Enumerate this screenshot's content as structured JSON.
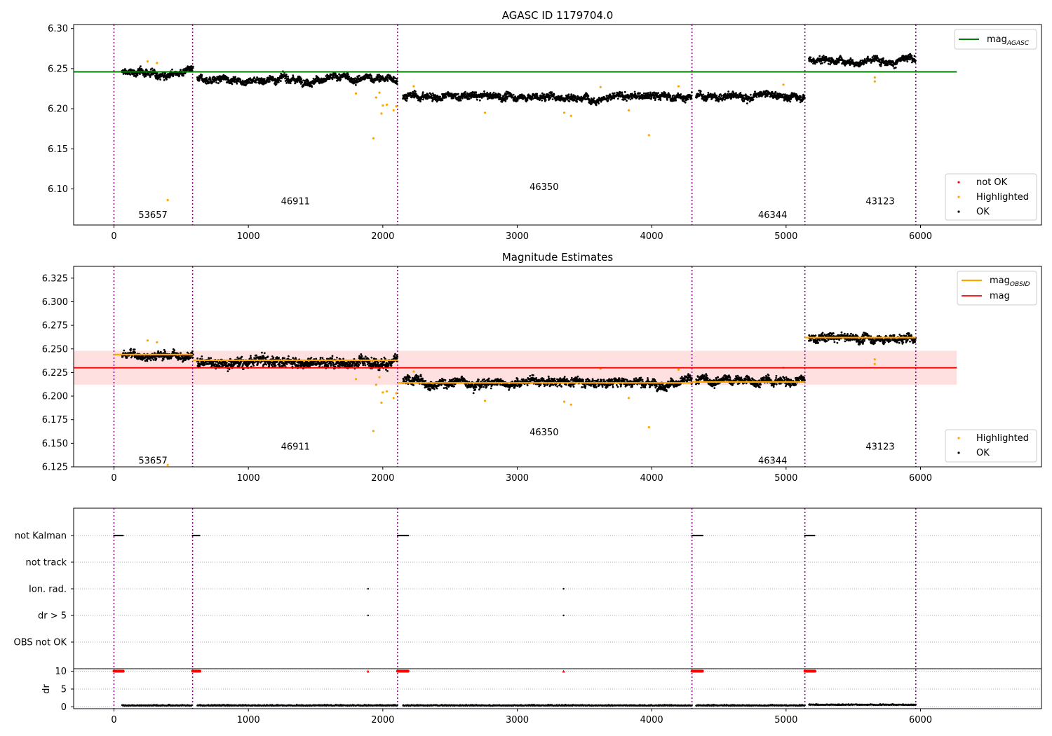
{
  "chart_data": [
    {
      "id": "agasc",
      "type": "scatter",
      "title": "AGASC ID 1179704.0",
      "xlim": [
        -300,
        6900
      ],
      "ylim": [
        6.055,
        6.305
      ],
      "xticks": [
        0,
        1000,
        2000,
        3000,
        4000,
        5000,
        6000
      ],
      "yticks": [
        6.1,
        6.15,
        6.2,
        6.25,
        6.3
      ],
      "ytick_labels": [
        "6.10",
        "6.15",
        "6.20",
        "6.25",
        "6.30"
      ],
      "vlines": [
        0,
        585,
        2110,
        4300,
        5140,
        5965
      ],
      "segments": [
        {
          "obsid": "53657",
          "x_start": 60,
          "x_end": 590,
          "mean": 6.245,
          "noise": 0.004,
          "label_x": 290,
          "label_y": 6.068
        },
        {
          "obsid": "46911",
          "x_start": 620,
          "x_end": 2110,
          "mean": 6.237,
          "noise": 0.004,
          "label_x": 1350,
          "label_y": 6.085
        },
        {
          "obsid": "46350",
          "x_start": 2150,
          "x_end": 4300,
          "mean": 6.215,
          "noise": 0.004,
          "label_x": 3200,
          "label_y": 6.103
        },
        {
          "obsid": "46344",
          "x_start": 4330,
          "x_end": 5140,
          "mean": 6.216,
          "noise": 0.004,
          "label_x": 4900,
          "label_y": 6.068
        },
        {
          "obsid": "43123",
          "x_start": 5170,
          "x_end": 5965,
          "mean": 6.261,
          "noise": 0.004,
          "label_x": 5700,
          "label_y": 6.085
        }
      ],
      "highlighted": [
        [
          250,
          6.259
        ],
        [
          320,
          6.257
        ],
        [
          400,
          6.086
        ],
        [
          1800,
          6.219
        ],
        [
          1930,
          6.163
        ],
        [
          1950,
          6.214
        ],
        [
          1975,
          6.22
        ],
        [
          1990,
          6.194
        ],
        [
          2000,
          6.204
        ],
        [
          2030,
          6.205
        ],
        [
          2080,
          6.198
        ],
        [
          2100,
          6.203
        ],
        [
          2230,
          6.228
        ],
        [
          2760,
          6.195
        ],
        [
          3350,
          6.195
        ],
        [
          3400,
          6.191
        ],
        [
          3620,
          6.227
        ],
        [
          3830,
          6.198
        ],
        [
          3980,
          6.167
        ],
        [
          4200,
          6.228
        ],
        [
          4980,
          6.23
        ],
        [
          5660,
          6.239
        ],
        [
          5660,
          6.234
        ]
      ],
      "hlines": [
        {
          "name": "mag_AGASC",
          "y": 6.246,
          "x_range": [
            -300,
            6270
          ],
          "color": "#008000"
        }
      ],
      "legends": [
        {
          "position": "top-right",
          "items": [
            {
              "label": "mag",
              "sub": "AGASC",
              "marker": "line",
              "color": "#008000"
            }
          ]
        },
        {
          "position": "bottom-right",
          "items": [
            {
              "label": "not OK",
              "marker": "dot",
              "color": "#ff0000"
            },
            {
              "label": "Highlighted",
              "marker": "dot",
              "color": "#ffa500"
            },
            {
              "label": "OK",
              "marker": "dot",
              "color": "#000000"
            }
          ]
        }
      ]
    },
    {
      "id": "estimates",
      "type": "scatter",
      "title": "Magnitude Estimates",
      "xlim": [
        -300,
        6900
      ],
      "ylim": [
        6.125,
        6.3375
      ],
      "xticks": [
        0,
        1000,
        2000,
        3000,
        4000,
        5000,
        6000
      ],
      "yticks": [
        6.125,
        6.15,
        6.175,
        6.2,
        6.225,
        6.25,
        6.275,
        6.3,
        6.325
      ],
      "ytick_labels": [
        "6.125",
        "6.150",
        "6.175",
        "6.200",
        "6.225",
        "6.250",
        "6.275",
        "6.300",
        "6.325"
      ],
      "vlines": [
        0,
        585,
        2110,
        4300,
        5140,
        5965
      ],
      "segments": [
        {
          "obsid": "53657",
          "x_start": 60,
          "x_end": 590,
          "mean": 6.244,
          "noise": 0.004,
          "label_x": 290,
          "label_y": 6.132
        },
        {
          "obsid": "46911",
          "x_start": 620,
          "x_end": 2110,
          "mean": 6.237,
          "noise": 0.005,
          "label_x": 1350,
          "label_y": 6.147
        },
        {
          "obsid": "46350",
          "x_start": 2150,
          "x_end": 4300,
          "mean": 6.215,
          "noise": 0.004,
          "label_x": 3200,
          "label_y": 6.162
        },
        {
          "obsid": "46344",
          "x_start": 4330,
          "x_end": 5140,
          "mean": 6.216,
          "noise": 0.004,
          "label_x": 4900,
          "label_y": 6.132
        },
        {
          "obsid": "43123",
          "x_start": 5170,
          "x_end": 5965,
          "mean": 6.261,
          "noise": 0.004,
          "label_x": 5700,
          "label_y": 6.147
        }
      ],
      "highlighted": [
        [
          250,
          6.259
        ],
        [
          320,
          6.257
        ],
        [
          400,
          6.127
        ],
        [
          1800,
          6.218
        ],
        [
          1930,
          6.163
        ],
        [
          1950,
          6.212
        ],
        [
          1975,
          6.22
        ],
        [
          1990,
          6.193
        ],
        [
          2000,
          6.204
        ],
        [
          2030,
          6.205
        ],
        [
          2080,
          6.198
        ],
        [
          2100,
          6.203
        ],
        [
          2230,
          6.226
        ],
        [
          2760,
          6.195
        ],
        [
          3350,
          6.194
        ],
        [
          3400,
          6.191
        ],
        [
          3620,
          6.229
        ],
        [
          3830,
          6.198
        ],
        [
          3980,
          6.167
        ],
        [
          4200,
          6.228
        ],
        [
          4980,
          6.23
        ],
        [
          5660,
          6.239
        ],
        [
          5660,
          6.234
        ]
      ],
      "obsid_lines": [
        {
          "x_range": [
            0,
            585
          ],
          "y": 6.244
        },
        {
          "x_range": [
            585,
            2110
          ],
          "y": 6.238
        },
        {
          "x_range": [
            2110,
            4300
          ],
          "y": 6.214
        },
        {
          "x_range": [
            4300,
            5140
          ],
          "y": 6.215
        },
        {
          "x_range": [
            5140,
            5965
          ],
          "y": 6.262
        }
      ],
      "mag": 6.23,
      "mag_band": [
        6.212,
        6.248
      ],
      "mag_x_range": [
        -300,
        6270
      ],
      "legends": [
        {
          "position": "top-right",
          "items": [
            {
              "label": "mag",
              "sub": "OBSID",
              "marker": "line",
              "color": "#ffa500"
            },
            {
              "label": "mag",
              "marker": "line",
              "color": "#ff0000"
            }
          ]
        },
        {
          "position": "bottom-right",
          "items": [
            {
              "label": "Highlighted",
              "marker": "dot",
              "color": "#ffa500"
            },
            {
              "label": "OK",
              "marker": "dot",
              "color": "#000000"
            }
          ]
        }
      ]
    },
    {
      "id": "flags",
      "type": "scatter",
      "xlim": [
        -300,
        6900
      ],
      "xticks": [
        0,
        1000,
        2000,
        3000,
        4000,
        5000,
        6000
      ],
      "vlines": [
        0,
        585,
        2110,
        4300,
        5140,
        5965
      ],
      "flag_rows": [
        "not Kalman",
        "not track",
        "Ion. rad.",
        "dr > 5",
        "OBS not OK"
      ],
      "flag_points": [
        {
          "row": "not Kalman",
          "ranges": [
            [
              0,
              70
            ],
            [
              585,
              640
            ],
            [
              2110,
              2190
            ],
            [
              4300,
              4380
            ],
            [
              5140,
              5215
            ]
          ]
        },
        {
          "row": "Ion. rad.",
          "points": [
            1890,
            3345
          ]
        },
        {
          "row": "dr > 5",
          "points": [
            1890,
            3345
          ]
        }
      ],
      "dr": {
        "ylabel": "dr",
        "ylim": [
          -0.5,
          10.5
        ],
        "yticks": [
          0,
          5,
          10
        ],
        "ytick_labels": [
          "0",
          "5",
          "10"
        ],
        "clipped_value": 10,
        "clipped_ranges": [
          [
            0,
            70
          ],
          [
            585,
            640
          ],
          [
            2110,
            2190
          ],
          [
            4300,
            4380
          ],
          [
            5140,
            5215
          ]
        ],
        "clipped_points": [
          1890,
          3345
        ],
        "baseline": [
          {
            "x_range": [
              60,
              580
            ],
            "level": 0.3
          },
          {
            "x_range": [
              620,
              2110
            ],
            "level": 0.3
          },
          {
            "x_range": [
              2150,
              4300
            ],
            "level": 0.3
          },
          {
            "x_range": [
              4330,
              5140
            ],
            "level": 0.3
          },
          {
            "x_range": [
              5170,
              5965
            ],
            "level": 0.5
          }
        ]
      }
    }
  ]
}
